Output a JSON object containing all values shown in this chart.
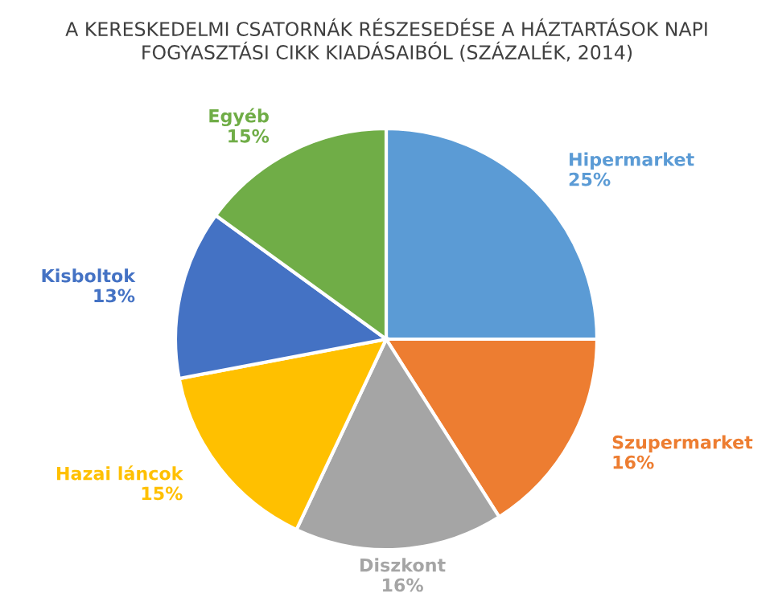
{
  "chart_data": {
    "type": "pie",
    "title": "A KERESKEDELMI CSATORNÁK RÉSZESEDÉSE A HÁZTARTÁSOK NAPI FOGYASZTÁSI CIKK KIADÁSAIBÓL (SZÁZALÉK, 2014)",
    "categories": [
      "Hipermarket",
      "Szupermarket",
      "Diszkont",
      "Hazai láncok",
      "Kisboltok",
      "Egyéb"
    ],
    "values": [
      25,
      16,
      16,
      15,
      13,
      15
    ],
    "value_labels": [
      "25%",
      "16%",
      "16%",
      "15%",
      "13%",
      "15%"
    ],
    "colors": [
      "#5b9bd5",
      "#ed7d31",
      "#a5a5a5",
      "#ffc000",
      "#4472c4",
      "#70ad47"
    ]
  }
}
